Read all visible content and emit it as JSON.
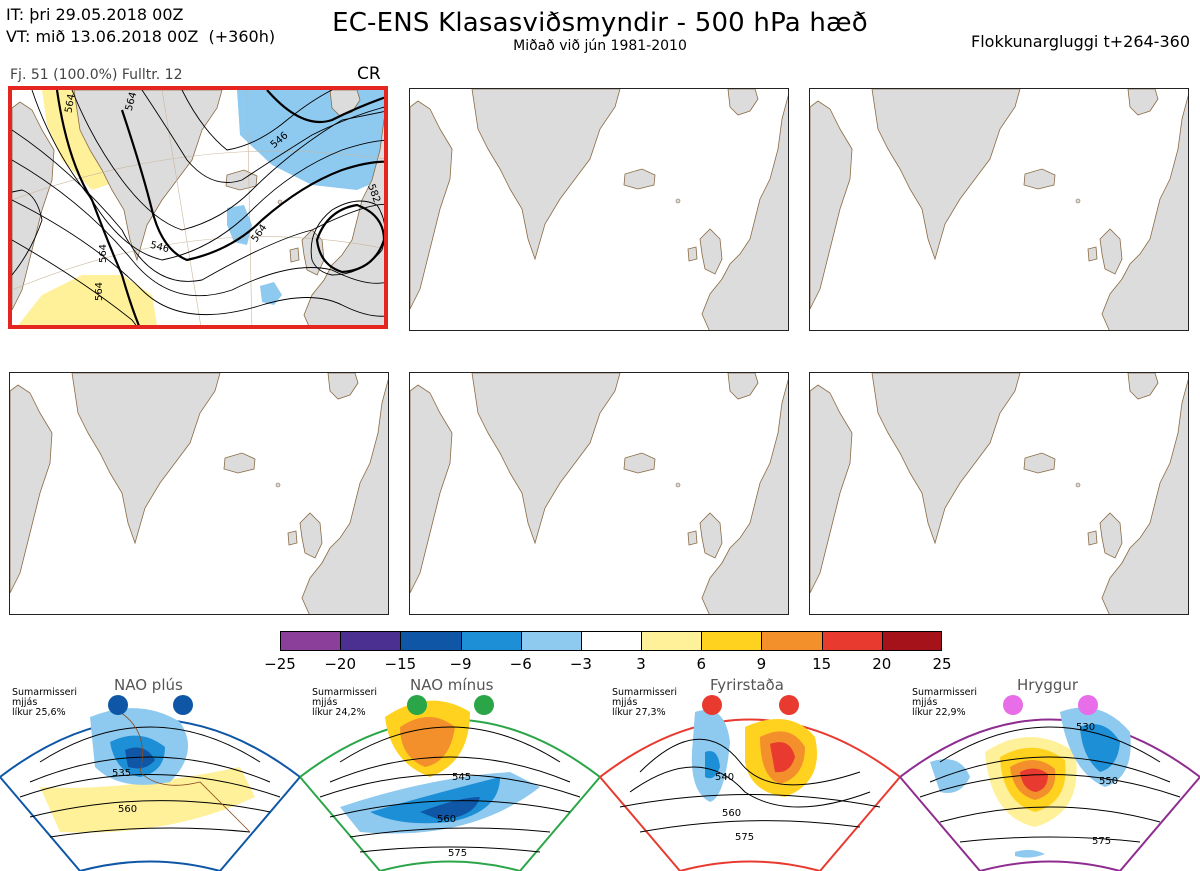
{
  "header": {
    "init_time": "IT: þri 29.05.2018 00Z",
    "valid_time": "VT: mið 13.06.2018 00Z  (+360h)",
    "title": "EC-ENS Klasasviðsmyndir - 500 hPa hæð",
    "subtitle": "Miðað við jún 1981-2010",
    "window": "Flokkunargluggi t+264-360"
  },
  "cluster_panel": {
    "meta": "Fj. 51 (100.0%)   Fulltr. 12",
    "regime": "CR",
    "contour_labels": [
      "564",
      "564",
      "546",
      "546",
      "564",
      "582",
      "564",
      "564"
    ],
    "selected": true
  },
  "empty_panels": 5,
  "colorbar": {
    "ticks": [
      "−25",
      "−20",
      "−15",
      "−9",
      "−6",
      "−3",
      "3",
      "6",
      "9",
      "15",
      "20",
      "25"
    ],
    "colors": [
      "#8b3f9b",
      "#4b2f91",
      "#0f57a6",
      "#1d8fd6",
      "#8ec9ef",
      "#ffffff",
      "#fff09a",
      "#ffd21f",
      "#f4902b",
      "#e83a2f",
      "#a51219"
    ]
  },
  "regimes": [
    {
      "name": "NAO plús",
      "season": "Sumarmisseri",
      "smoothing": "mjjás",
      "probability": "líkur 25,6%",
      "color": "#0f57a6",
      "labels": [
        "535",
        "560"
      ]
    },
    {
      "name": "NAO mínus",
      "season": "Sumarmisseri",
      "smoothing": "mjjás",
      "probability": "líkur 24,2%",
      "color": "#2aa648",
      "labels": [
        "545",
        "560",
        "575"
      ]
    },
    {
      "name": "Fyrirstaða",
      "season": "Sumarmisseri",
      "smoothing": "mjjás",
      "probability": "líkur 27,3%",
      "color": "#e83a2f",
      "labels": [
        "540",
        "560",
        "575"
      ]
    },
    {
      "name": "Hryggur",
      "season": "Sumarmisseri",
      "smoothing": "mjjás",
      "probability": "líkur 22,9%",
      "color": "#8e2d8f",
      "labels": [
        "530",
        "550",
        "575"
      ]
    }
  ]
}
